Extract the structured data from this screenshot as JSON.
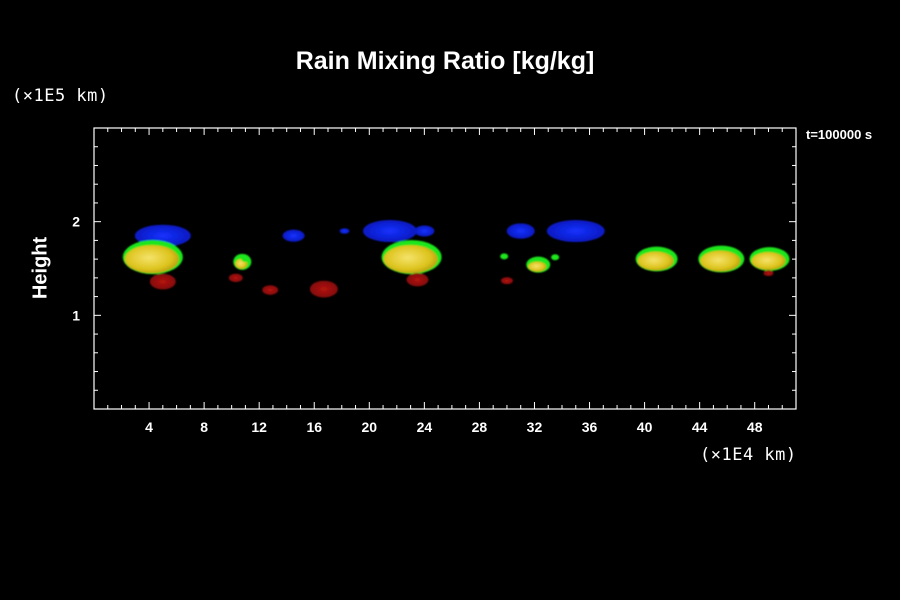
{
  "chart_data": {
    "type": "scatter",
    "title": "Rain Mixing Ratio [kg/kg]",
    "ylabel": "Height",
    "xlabel": "",
    "x_unit": "(×1E4 km)",
    "y_unit": "(×1E5 km)",
    "time_label": "t=100000 s",
    "xlim": [
      0,
      51
    ],
    "ylim": [
      0,
      3
    ],
    "xticks": [
      "4",
      "8",
      "12",
      "16",
      "20",
      "24",
      "28",
      "32",
      "36",
      "40",
      "44",
      "48"
    ],
    "yticks": [
      "1",
      "2"
    ],
    "colors": {
      "blue": "#0a1ed2",
      "green": "#1ee61e",
      "yellow": "#e8d21e",
      "red": "#a50f0a"
    },
    "features": [
      {
        "x": 5.0,
        "y": 1.85,
        "class": "blue"
      },
      {
        "x": 14.5,
        "y": 1.85,
        "class": "blue"
      },
      {
        "x": 18.2,
        "y": 1.9,
        "class": "blue"
      },
      {
        "x": 21.5,
        "y": 1.9,
        "class": "blue"
      },
      {
        "x": 24.0,
        "y": 1.9,
        "class": "blue"
      },
      {
        "x": 31.0,
        "y": 1.9,
        "class": "blue"
      },
      {
        "x": 35.0,
        "y": 1.9,
        "class": "blue"
      },
      {
        "x": 4.2,
        "y": 1.6,
        "class": "yellow"
      },
      {
        "x": 10.7,
        "y": 1.55,
        "class": "yellow"
      },
      {
        "x": 23.0,
        "y": 1.6,
        "class": "yellow"
      },
      {
        "x": 32.2,
        "y": 1.52,
        "class": "yellow"
      },
      {
        "x": 40.8,
        "y": 1.58,
        "class": "yellow"
      },
      {
        "x": 45.5,
        "y": 1.58,
        "class": "yellow"
      },
      {
        "x": 49.0,
        "y": 1.58,
        "class": "yellow"
      },
      {
        "x": 5.0,
        "y": 1.36,
        "class": "red"
      },
      {
        "x": 10.3,
        "y": 1.4,
        "class": "red"
      },
      {
        "x": 12.8,
        "y": 1.27,
        "class": "red"
      },
      {
        "x": 16.7,
        "y": 1.28,
        "class": "red"
      },
      {
        "x": 23.5,
        "y": 1.38,
        "class": "red"
      },
      {
        "x": 30.0,
        "y": 1.37,
        "class": "red"
      },
      {
        "x": 49.0,
        "y": 1.45,
        "class": "red"
      }
    ]
  }
}
